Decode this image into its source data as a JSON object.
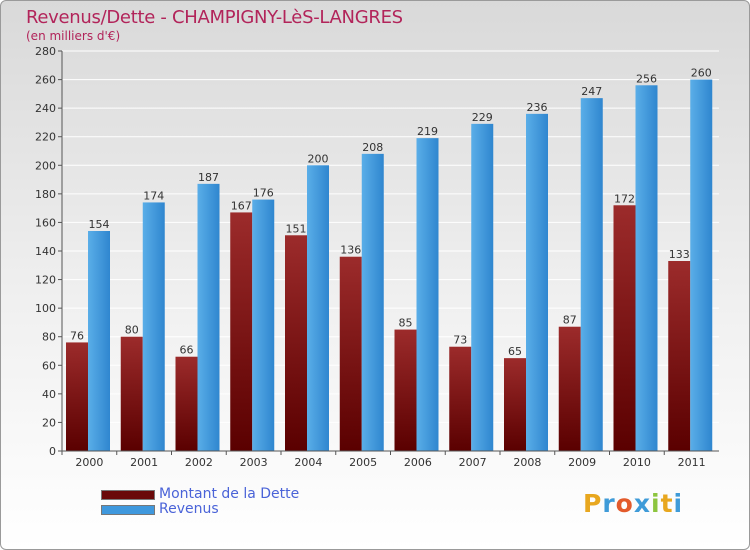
{
  "title": "Revenus/Dette - CHAMPIGNY-LèS-LANGRES",
  "subtitle": "(en milliers d'€)",
  "logo": {
    "letters": [
      "P",
      "r",
      "o",
      "x",
      "i",
      "t",
      "i"
    ],
    "colors": [
      "#e8a71f",
      "#3f9bd8",
      "#e35a2b",
      "#3f9bd8",
      "#8dc53f",
      "#e8a71f",
      "#3f9bd8"
    ]
  },
  "chart_data": {
    "type": "bar",
    "categories": [
      "2000",
      "2001",
      "2002",
      "2003",
      "2004",
      "2005",
      "2006",
      "2007",
      "2008",
      "2009",
      "2010",
      "2011"
    ],
    "series": [
      {
        "name": "Montant de la Dette",
        "color": "#8b1a1a",
        "values": [
          76,
          80,
          66,
          167,
          151,
          136,
          85,
          73,
          65,
          87,
          172,
          133
        ]
      },
      {
        "name": "Revenus",
        "color": "#3f98dd",
        "values": [
          154,
          174,
          187,
          176,
          200,
          208,
          219,
          229,
          236,
          247,
          256,
          260
        ]
      }
    ],
    "ylim": [
      0,
      280
    ],
    "yticks": [
      0,
      20,
      40,
      60,
      80,
      100,
      120,
      140,
      160,
      180,
      200,
      220,
      240,
      260,
      280
    ],
    "grid": true,
    "legend": "bottom-left"
  }
}
